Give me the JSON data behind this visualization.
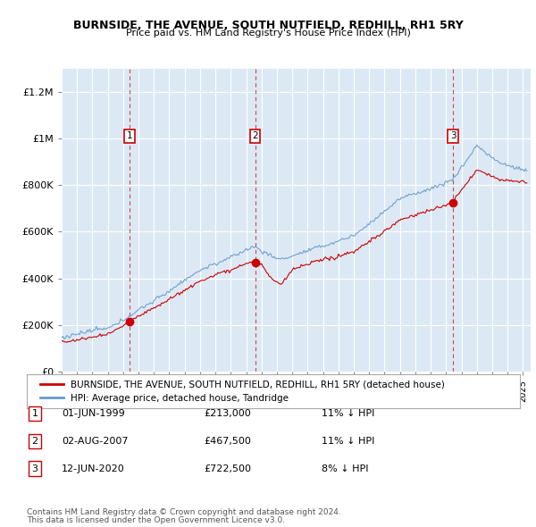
{
  "title": "BURNSIDE, THE AVENUE, SOUTH NUTFIELD, REDHILL, RH1 5RY",
  "subtitle": "Price paid vs. HM Land Registry's House Price Index (HPI)",
  "ylabel_ticks": [
    "£0",
    "£200K",
    "£400K",
    "£600K",
    "£800K",
    "£1M",
    "£1.2M"
  ],
  "ytick_values": [
    0,
    200000,
    400000,
    600000,
    800000,
    1000000,
    1200000
  ],
  "ylim": [
    0,
    1300000
  ],
  "xlim_start": 1995.0,
  "xlim_end": 2025.5,
  "background_color": "#dce9f5",
  "grid_color": "#ffffff",
  "sale_color": "#cc0000",
  "hpi_color": "#6699cc",
  "sale_label": "BURNSIDE, THE AVENUE, SOUTH NUTFIELD, REDHILL, RH1 5RY (detached house)",
  "hpi_label": "HPI: Average price, detached house, Tandridge",
  "purchases": [
    {
      "label": "1",
      "date_x": 1999.42,
      "price": 213000,
      "date_str": "01-JUN-1999",
      "pct_str": "11% ↓ HPI"
    },
    {
      "label": "2",
      "date_x": 2007.58,
      "price": 467500,
      "date_str": "02-AUG-2007",
      "pct_str": "11% ↓ HPI"
    },
    {
      "label": "3",
      "date_x": 2020.45,
      "price": 722500,
      "date_str": "12-JUN-2020",
      "pct_str": "8% ↓ HPI"
    }
  ],
  "footer1": "Contains HM Land Registry data © Crown copyright and database right 2024.",
  "footer2": "This data is licensed under the Open Government Licence v3.0.",
  "table_rows": [
    [
      "1",
      "01-JUN-1999",
      "£213,000",
      "11% ↓ HPI"
    ],
    [
      "2",
      "02-AUG-2007",
      "£467,500",
      "11% ↓ HPI"
    ],
    [
      "3",
      "12-JUN-2020",
      "£722,500",
      "8% ↓ HPI"
    ]
  ]
}
